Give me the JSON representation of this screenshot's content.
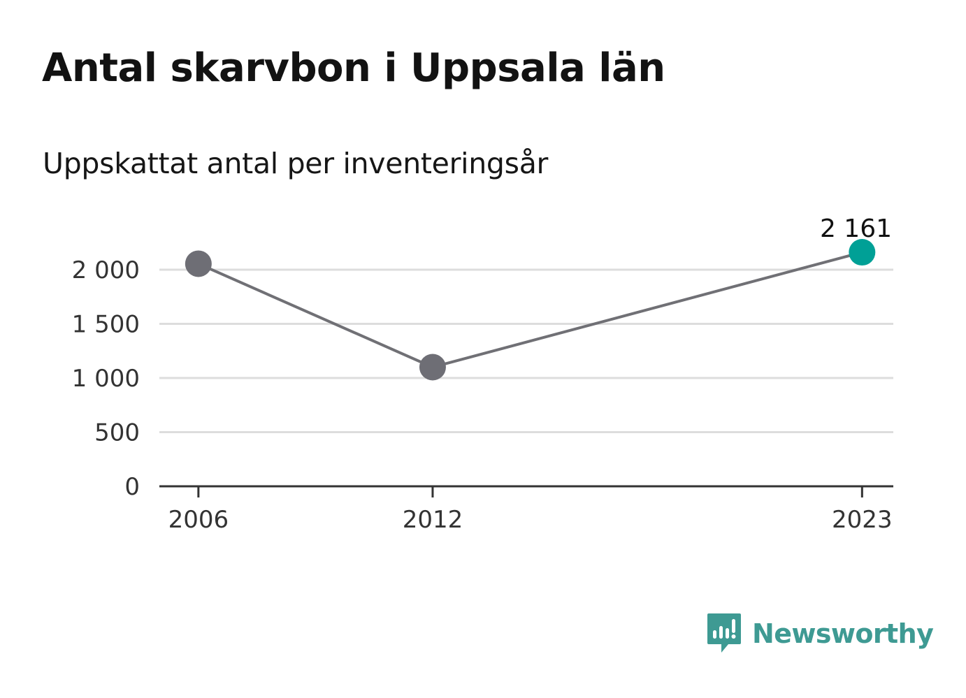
{
  "header": {
    "title": "Antal skarvbon i Uppsala län",
    "subtitle": "Uppskattat antal per inventeringsår"
  },
  "chart_data": {
    "type": "line",
    "title": "Antal skarvbon i Uppsala län",
    "subtitle": "Uppskattat antal per inventeringsår",
    "x": [
      2006,
      2012,
      2023
    ],
    "values": [
      2055,
      1100,
      2161
    ],
    "x_ticks": [
      "2006",
      "2012",
      "2023"
    ],
    "y_ticks": [
      0,
      500,
      1000,
      1500,
      2000
    ],
    "y_tick_labels": [
      "0",
      "500",
      "1 000",
      "1 500",
      "2 000"
    ],
    "ylim": [
      0,
      2000
    ],
    "xlabel": "",
    "ylabel": "",
    "grid": true,
    "annotations": [
      {
        "x": 2023,
        "y": 2161,
        "label": "2 161"
      }
    ],
    "colors": {
      "line": "#707075",
      "point": "#6e6e75",
      "highlight_point": "#00a096",
      "grid": "#dddddd",
      "axis": "#333333"
    }
  },
  "brand": {
    "name": "Newsworthy",
    "icon": "newsworthy-logo-icon",
    "color": "#3e9a93"
  }
}
